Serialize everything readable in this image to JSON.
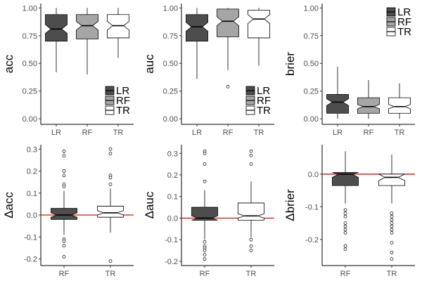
{
  "chart_data": [
    {
      "type": "boxplot",
      "ylabel": "acc",
      "ylim": [
        -0.05,
        1.04
      ],
      "yticks": [
        0,
        0.25,
        0.5,
        0.75,
        1.0
      ],
      "ytick_labels": [
        "0.00",
        "0.25",
        "0.50",
        "0.75",
        "1.00"
      ],
      "notched": true,
      "legend": {
        "position": "bottom-right",
        "entries": [
          "LR",
          "RF",
          "TR"
        ]
      },
      "groups": [
        {
          "name": "LR",
          "color": "#4d4d4d",
          "min": 0.42,
          "q1": 0.7,
          "median": 0.81,
          "q3": 0.94,
          "max": 1.0,
          "notch": [
            0.77,
            0.85
          ],
          "outliers": []
        },
        {
          "name": "RF",
          "color": "#a6a6a6",
          "min": 0.4,
          "q1": 0.72,
          "median": 0.84,
          "q3": 0.94,
          "max": 1.0,
          "notch": [
            0.8,
            0.88
          ],
          "outliers": []
        },
        {
          "name": "TR",
          "color": "#ffffff",
          "min": 0.55,
          "q1": 0.73,
          "median": 0.84,
          "q3": 0.94,
          "max": 1.0,
          "notch": [
            0.8,
            0.88
          ],
          "outliers": []
        }
      ]
    },
    {
      "type": "boxplot",
      "ylabel": "auc",
      "ylim": [
        -0.05,
        1.04
      ],
      "yticks": [
        0,
        0.25,
        0.5,
        0.75,
        1.0
      ],
      "ytick_labels": [
        "0.00",
        "0.25",
        "0.50",
        "0.75",
        "1.00"
      ],
      "notched": true,
      "legend": {
        "position": "bottom-right",
        "entries": [
          "LR",
          "RF",
          "TR"
        ]
      },
      "groups": [
        {
          "name": "LR",
          "color": "#4d4d4d",
          "min": 0.36,
          "q1": 0.7,
          "median": 0.83,
          "q3": 0.94,
          "max": 1.0,
          "notch": [
            0.79,
            0.87
          ],
          "outliers": []
        },
        {
          "name": "RF",
          "color": "#a6a6a6",
          "min": 0.44,
          "q1": 0.74,
          "median": 0.88,
          "q3": 0.99,
          "max": 1.0,
          "notch": [
            0.84,
            0.92
          ],
          "outliers": [
            0.29
          ]
        },
        {
          "name": "TR",
          "color": "#ffffff",
          "min": 0.48,
          "q1": 0.73,
          "median": 0.9,
          "q3": 0.98,
          "max": 1.0,
          "notch": [
            0.86,
            0.94
          ],
          "outliers": []
        }
      ]
    },
    {
      "type": "boxplot",
      "ylabel": "brier",
      "ylim": [
        -0.05,
        1.04
      ],
      "yticks": [
        0,
        0.25,
        0.5,
        0.75,
        1.0
      ],
      "ytick_labels": [
        "0.00",
        "0.25",
        "0.50",
        "0.75",
        "1.00"
      ],
      "notched": true,
      "legend": {
        "position": "top-right",
        "entries": [
          "LR",
          "RF",
          "TR"
        ]
      },
      "groups": [
        {
          "name": "LR",
          "color": "#4d4d4d",
          "min": 0.0,
          "q1": 0.05,
          "median": 0.15,
          "q3": 0.22,
          "max": 0.47,
          "notch": [
            0.12,
            0.18
          ],
          "outliers": []
        },
        {
          "name": "RF",
          "color": "#a6a6a6",
          "min": 0.0,
          "q1": 0.05,
          "median": 0.11,
          "q3": 0.19,
          "max": 0.35,
          "notch": [
            0.09,
            0.13
          ],
          "outliers": []
        },
        {
          "name": "TR",
          "color": "#ffffff",
          "min": 0.0,
          "q1": 0.05,
          "median": 0.11,
          "q3": 0.19,
          "max": 0.32,
          "notch": [
            0.09,
            0.13
          ],
          "outliers": []
        }
      ]
    },
    {
      "type": "boxplot",
      "ylabel": "Δacc",
      "ylim": [
        -0.23,
        0.32
      ],
      "yticks": [
        -0.2,
        -0.1,
        0.0,
        0.1,
        0.2,
        0.3
      ],
      "ytick_labels": [
        "-0.2",
        "-0.1",
        "0.0",
        "0.1",
        "0.2",
        "0.3"
      ],
      "notched": true,
      "reference_line": {
        "y": 0,
        "color": "#c00000"
      },
      "groups": [
        {
          "name": "RF",
          "color": "#4d4d4d",
          "min": -0.09,
          "q1": -0.02,
          "median": 0.0,
          "q3": 0.03,
          "max": 0.11,
          "notch": [
            -0.01,
            0.01
          ],
          "outliers": [
            0.29,
            0.27,
            0.2,
            0.18,
            0.14,
            0.13,
            -0.11,
            -0.12,
            -0.14,
            -0.19
          ]
        },
        {
          "name": "TR",
          "color": "#ffffff",
          "min": -0.08,
          "q1": -0.01,
          "median": 0.01,
          "q3": 0.04,
          "max": 0.12,
          "notch": [
            0.0,
            0.02
          ],
          "outliers": [
            0.3,
            0.28,
            0.18,
            0.17,
            0.14,
            -0.21
          ]
        }
      ]
    },
    {
      "type": "boxplot",
      "ylabel": "Δauc",
      "ylim": [
        -0.22,
        0.34
      ],
      "yticks": [
        -0.2,
        -0.1,
        0.0,
        0.1,
        0.2,
        0.3
      ],
      "ytick_labels": [
        "-0.2",
        "-0.1",
        "0.0",
        "0.1",
        "0.2",
        "0.3"
      ],
      "notched": true,
      "reference_line": {
        "y": 0,
        "color": "#c00000"
      },
      "groups": [
        {
          "name": "RF",
          "color": "#4d4d4d",
          "min": -0.1,
          "q1": -0.01,
          "median": 0.0,
          "q3": 0.05,
          "max": 0.13,
          "notch": [
            -0.01,
            0.01
          ],
          "outliers": [
            0.31,
            0.3,
            0.25,
            0.17,
            -0.11,
            -0.13,
            -0.14,
            -0.15,
            -0.17,
            -0.19
          ]
        },
        {
          "name": "TR",
          "color": "#ffffff",
          "min": -0.09,
          "q1": -0.01,
          "median": 0.01,
          "q3": 0.07,
          "max": 0.17,
          "notch": [
            0.0,
            0.02
          ],
          "outliers": [
            0.31,
            0.29,
            0.25,
            -0.1,
            -0.13,
            -0.15
          ]
        }
      ]
    },
    {
      "type": "boxplot",
      "ylabel": "Δbrier",
      "ylim": [
        -0.28,
        0.09
      ],
      "yticks": [
        -0.2,
        -0.1,
        0.0
      ],
      "ytick_labels": [
        "-0.2",
        "-0.1",
        "0.0"
      ],
      "notched": true,
      "reference_line": {
        "y": 0,
        "color": "#c00000"
      },
      "groups": [
        {
          "name": "RF",
          "color": "#4d4d4d",
          "min": -0.09,
          "q1": -0.035,
          "median": 0.0,
          "q3": 0.005,
          "max": 0.07,
          "notch": [
            -0.01,
            0.005
          ],
          "outliers": [
            -0.11,
            -0.12,
            -0.13,
            -0.15,
            -0.16,
            -0.17,
            -0.18,
            -0.22,
            -0.23
          ]
        },
        {
          "name": "TR",
          "color": "#ffffff",
          "min": -0.09,
          "q1": -0.035,
          "median": -0.01,
          "q3": 0.0,
          "max": 0.06,
          "notch": [
            -0.02,
            0.0
          ],
          "outliers": [
            -0.12,
            -0.13,
            -0.14,
            -0.15,
            -0.16,
            -0.17,
            -0.18,
            -0.21,
            -0.24,
            -0.26
          ]
        }
      ]
    }
  ]
}
